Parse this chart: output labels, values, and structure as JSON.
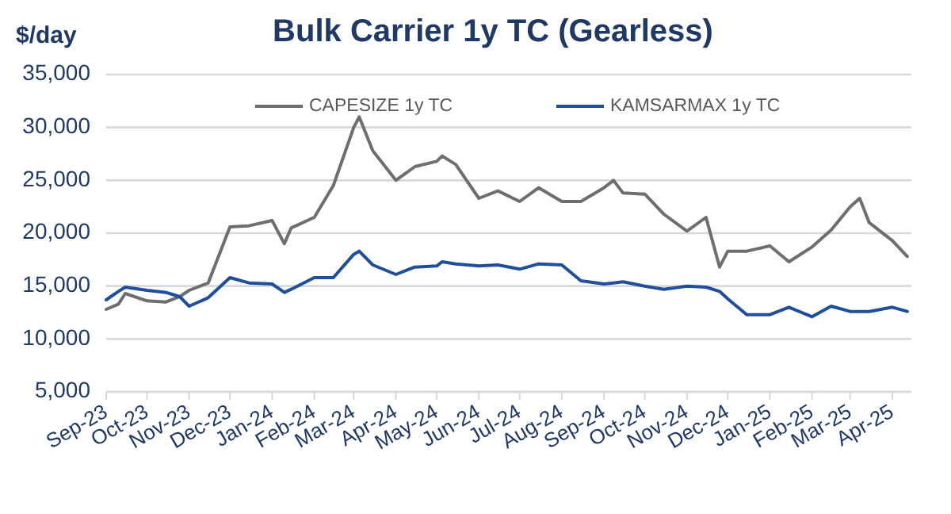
{
  "chart_data": {
    "type": "line",
    "title": "Bulk Carrier 1y TC (Gearless)",
    "ylabel": "$/day",
    "x": [
      "2023-09-01",
      "2023-09-10",
      "2023-09-15",
      "2023-10-01",
      "2023-10-15",
      "2023-10-25",
      "2023-11-01",
      "2023-11-15",
      "2023-12-01",
      "2023-12-15",
      "2024-01-01",
      "2024-01-10",
      "2024-01-15",
      "2024-02-01",
      "2024-02-15",
      "2024-03-01",
      "2024-03-05",
      "2024-03-15",
      "2024-04-01",
      "2024-04-15",
      "2024-05-01",
      "2024-05-05",
      "2024-05-15",
      "2024-06-01",
      "2024-06-15",
      "2024-07-01",
      "2024-07-15",
      "2024-08-01",
      "2024-08-15",
      "2024-09-01",
      "2024-09-08",
      "2024-09-15",
      "2024-10-01",
      "2024-10-15",
      "2024-11-01",
      "2024-11-15",
      "2024-11-25",
      "2024-12-01",
      "2024-12-15",
      "2025-01-01",
      "2025-01-15",
      "2025-02-01",
      "2025-02-15",
      "2025-03-01",
      "2025-03-08",
      "2025-03-15",
      "2025-04-01",
      "2025-04-12"
    ],
    "series": [
      {
        "name": "CAPESIZE 1y TC",
        "color": "#6e6e6e",
        "values": [
          12800,
          13300,
          14300,
          13600,
          13500,
          14000,
          14600,
          15300,
          20600,
          20700,
          21200,
          19000,
          20500,
          21500,
          24500,
          30000,
          31000,
          27800,
          25000,
          26300,
          26800,
          27300,
          26500,
          23300,
          24000,
          23000,
          24300,
          23000,
          23000,
          24300,
          25000,
          23800,
          23700,
          21800,
          20200,
          21500,
          16800,
          18300,
          18300,
          18800,
          17300,
          18700,
          20300,
          22500,
          23300,
          21000,
          19300,
          17800
        ]
      },
      {
        "name": "KAMSARMAX 1y TC",
        "color": "#1f4e9c",
        "values": [
          13700,
          14500,
          14900,
          14600,
          14400,
          14000,
          13100,
          13900,
          15800,
          15300,
          15200,
          14400,
          14700,
          15800,
          15800,
          18000,
          18300,
          17000,
          16100,
          16800,
          16900,
          17300,
          17100,
          16900,
          17000,
          16600,
          17100,
          17000,
          15500,
          15200,
          15300,
          15400,
          15000,
          14700,
          15000,
          14900,
          14500,
          13800,
          12300,
          12300,
          13000,
          12100,
          13100,
          12600,
          12600,
          12600,
          13000,
          12600
        ]
      }
    ],
    "xlim": [
      "2023-09-01",
      "2025-04-15"
    ],
    "xticks": [
      {
        "value": "2023-09-01",
        "label": "Sep-23"
      },
      {
        "value": "2023-10-01",
        "label": "Oct-23"
      },
      {
        "value": "2023-11-01",
        "label": "Nov-23"
      },
      {
        "value": "2023-12-01",
        "label": "Dec-23"
      },
      {
        "value": "2024-01-01",
        "label": "Jan-24"
      },
      {
        "value": "2024-02-01",
        "label": "Feb-24"
      },
      {
        "value": "2024-03-01",
        "label": "Mar-24"
      },
      {
        "value": "2024-04-01",
        "label": "Apr-24"
      },
      {
        "value": "2024-05-01",
        "label": "May-24"
      },
      {
        "value": "2024-06-01",
        "label": "Jun-24"
      },
      {
        "value": "2024-07-01",
        "label": "Jul-24"
      },
      {
        "value": "2024-08-01",
        "label": "Aug-24"
      },
      {
        "value": "2024-09-01",
        "label": "Sep-24"
      },
      {
        "value": "2024-10-01",
        "label": "Oct-24"
      },
      {
        "value": "2024-11-01",
        "label": "Nov-24"
      },
      {
        "value": "2024-12-01",
        "label": "Dec-24"
      },
      {
        "value": "2025-01-01",
        "label": "Jan-25"
      },
      {
        "value": "2025-02-01",
        "label": "Feb-25"
      },
      {
        "value": "2025-03-01",
        "label": "Mar-25"
      },
      {
        "value": "2025-04-01",
        "label": "Apr-25"
      }
    ],
    "ylim": [
      5000,
      35000
    ],
    "yticks": [
      {
        "value": 5000,
        "label": "5,000"
      },
      {
        "value": 10000,
        "label": "10,000"
      },
      {
        "value": 15000,
        "label": "15,000"
      },
      {
        "value": 20000,
        "label": "20,000"
      },
      {
        "value": 25000,
        "label": "25,000"
      },
      {
        "value": 30000,
        "label": "30,000"
      },
      {
        "value": 35000,
        "label": "35,000"
      }
    ],
    "grid": "y",
    "legend": "top",
    "marker": "none",
    "line_style": "solid"
  }
}
